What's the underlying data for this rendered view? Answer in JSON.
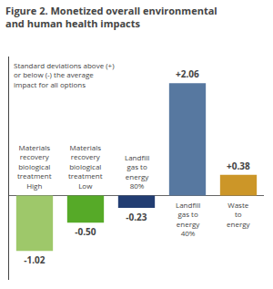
{
  "chart_data": {
    "type": "bar",
    "title": "Figure 2. Monetized overall environmental\nand human health impacts",
    "subtitle": "Standard deviations above (+)\nor below (-) the average\nimpact for all options",
    "categories": [
      "Materials\nrecovery\nbiological\ntreatment\nHigh",
      "Materials\nrecovery\nbiological\ntreatment\nLow",
      "Landfill\ngas to\nenergy\n80%",
      "Landfill\ngas to\nenergy\n40%",
      "Waste\nto\nenergy"
    ],
    "values": [
      -1.02,
      -0.5,
      -0.23,
      2.06,
      0.38
    ],
    "value_labels": [
      "-1.02",
      "-0.50",
      "-0.23",
      "+2.06",
      "+0.38"
    ],
    "data_labels": true,
    "colors": [
      "#9ec86a",
      "#56aa28",
      "#223d72",
      "#5778a0",
      "#cc9628"
    ],
    "ylim": [
      -1.55,
      2.55
    ],
    "tick_labels": false,
    "grid": false
  }
}
